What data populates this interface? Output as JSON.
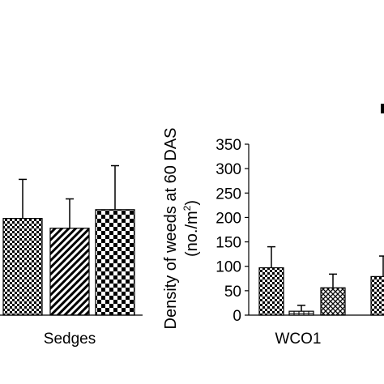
{
  "colors": {
    "ink": "#000000",
    "background": "#ffffff"
  },
  "chart_data": [
    {
      "type": "bar",
      "panel": "left",
      "categories": [
        "Sedges"
      ],
      "series": [
        {
          "pattern": "dense-check",
          "values": [
            198
          ],
          "error": [
            80
          ]
        },
        {
          "pattern": "diagonal-hatch",
          "values": [
            178
          ],
          "error": [
            60
          ]
        },
        {
          "pattern": "large-check",
          "values": [
            216
          ],
          "error": [
            90
          ]
        }
      ],
      "xlabel": "",
      "ylabel": "",
      "tick_labels": [
        "Sedges"
      ],
      "ylim": [
        0,
        350
      ],
      "grid": false,
      "legend": "none"
    },
    {
      "type": "bar",
      "panel": "right",
      "categories": [
        "WCO1"
      ],
      "series": [
        {
          "pattern": "dense-check",
          "values": [
            97
          ],
          "error": [
            43
          ]
        },
        {
          "pattern": "plus-cross",
          "values": [
            8
          ],
          "error": [
            12
          ]
        },
        {
          "pattern": "cross-hatch",
          "values": [
            56
          ],
          "error": [
            28
          ]
        },
        {
          "pattern": "dense-check",
          "values": [
            79
          ],
          "error": [
            42
          ]
        }
      ],
      "ylabel_line1": "Density of weeds at 60 DAS",
      "ylabel_line2_prefix": "(no./m",
      "ylabel_line2_sup": "2",
      "ylabel_line2_suffix": ")",
      "xlabel": "",
      "tick_labels": [
        "WCO1"
      ],
      "yticks": [
        "0",
        "50",
        "100",
        "150",
        "200",
        "250",
        "300",
        "350"
      ],
      "ylim": [
        0,
        350
      ],
      "grid": false,
      "legend": "none"
    }
  ]
}
